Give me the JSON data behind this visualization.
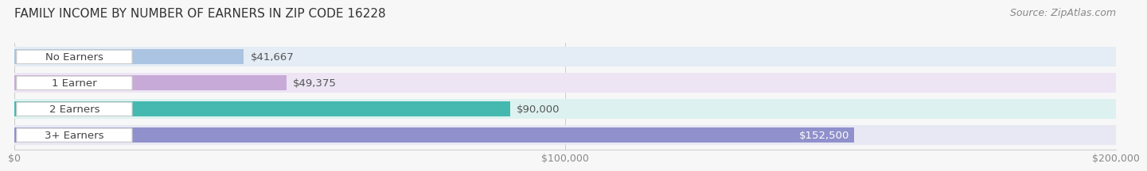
{
  "title": "FAMILY INCOME BY NUMBER OF EARNERS IN ZIP CODE 16228",
  "source": "Source: ZipAtlas.com",
  "categories": [
    "No Earners",
    "1 Earner",
    "2 Earners",
    "3+ Earners"
  ],
  "values": [
    41667,
    49375,
    90000,
    152500
  ],
  "value_labels": [
    "$41,667",
    "$49,375",
    "$90,000",
    "$152,500"
  ],
  "bar_colors": [
    "#aac4e2",
    "#c8aad8",
    "#45b8b0",
    "#9090cc"
  ],
  "bar_bg_colors": [
    "#e4edf6",
    "#ede4f4",
    "#ddf2f0",
    "#e8e8f4"
  ],
  "xlim": [
    0,
    200000
  ],
  "xticks": [
    0,
    100000,
    200000
  ],
  "xtick_labels": [
    "$0",
    "$100,000",
    "$200,000"
  ],
  "background_color": "#f7f7f7",
  "title_fontsize": 11,
  "source_fontsize": 9,
  "label_fontsize": 9.5,
  "value_fontsize": 9.5,
  "tick_fontsize": 9,
  "value_white_threshold": 0.72
}
